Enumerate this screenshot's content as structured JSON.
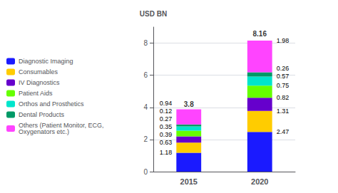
{
  "chart_data": {
    "type": "bar",
    "stacked": true,
    "data_labels": true,
    "categories": [
      "2015",
      "2020"
    ],
    "series": [
      {
        "name": "Diagnostic Imaging",
        "color": "#1a1aff",
        "values": [
          1.18,
          2.47
        ]
      },
      {
        "name": "Consumables",
        "color": "#ffcc00",
        "values": [
          0.63,
          1.31
        ]
      },
      {
        "name": "IV Diagnostics",
        "color": "#6600cc",
        "values": [
          0.39,
          0.82
        ]
      },
      {
        "name": "Patient Aids",
        "color": "#66ff00",
        "values": [
          0.35,
          0.75
        ]
      },
      {
        "name": "Orthos and Prosthetics",
        "color": "#00e5cc",
        "values": [
          0.27,
          0.57
        ]
      },
      {
        "name": "Dental Products",
        "color": "#009966",
        "values": [
          0.12,
          0.26
        ]
      },
      {
        "name": "Others (Patient Monitor, ECG,\nOxygenators etc.)",
        "color": "#ff44ff",
        "values": [
          0.94,
          1.98
        ]
      }
    ],
    "totals": [
      3.8,
      8.16
    ],
    "ylabel": "USD BN",
    "ylim": [
      0,
      9
    ],
    "yticks": [
      0,
      2,
      4,
      6,
      8
    ],
    "grid": true,
    "legend": "left"
  }
}
